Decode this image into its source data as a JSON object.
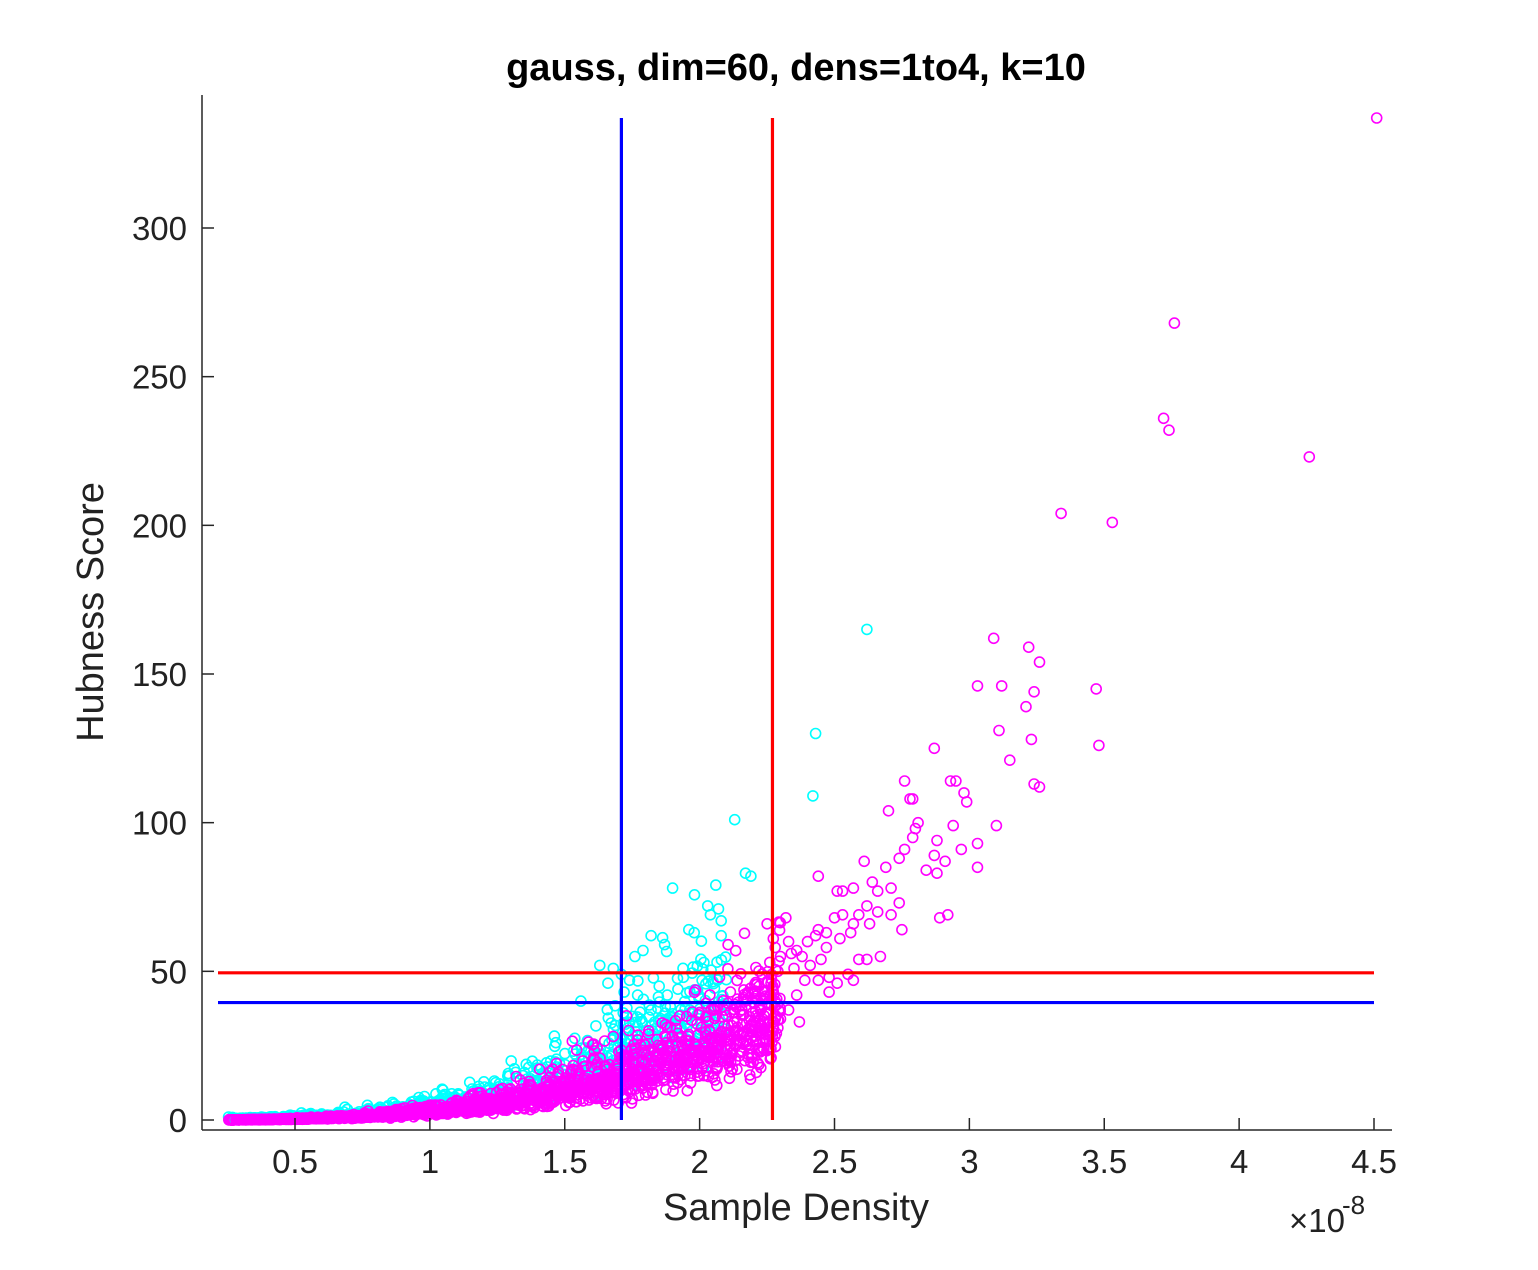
{
  "chart_data": {
    "type": "scatter",
    "title": "gauss, dim=60, dens=1to4, k=10",
    "xlabel": "Sample Density",
    "ylabel": "Hubness Score",
    "x_exponent_label": "×10",
    "x_exponent_power": "-8",
    "xlim": [
      0.2,
      4.5
    ],
    "ylim": [
      0,
      337
    ],
    "xticks": [
      0.5,
      1,
      1.5,
      2,
      2.5,
      3,
      3.5,
      4,
      4.5
    ],
    "yticks": [
      0,
      50,
      100,
      150,
      200,
      250,
      300
    ],
    "grid": false,
    "legend": "none",
    "colors": {
      "series_cyan": "#00ffff",
      "series_magenta": "#ff00ff",
      "ref_blue": "#0000ff",
      "ref_red": "#ff0000",
      "axis": "#262626"
    },
    "reference_lines": [
      {
        "orientation": "vertical",
        "x": 1.71,
        "y_range": [
          0,
          337
        ],
        "color": "#0000ff"
      },
      {
        "orientation": "vertical",
        "x": 2.27,
        "y_range": [
          0,
          337
        ],
        "color": "#ff0000"
      },
      {
        "orientation": "horizontal",
        "y": 39.5,
        "x_range": [
          0.25,
          4.5
        ],
        "color": "#0000ff"
      },
      {
        "orientation": "horizontal",
        "y": 49.5,
        "x_range": [
          0.25,
          4.5
        ],
        "color": "#ff0000"
      }
    ],
    "series": [
      {
        "color": "#00ffff",
        "trend": {
          "x_range": [
            0.25,
            2.1
          ],
          "base": 0.4,
          "coef": 43.0,
          "exponent": 3.0,
          "spread": 0.28,
          "count": 900
        },
        "points": [
          {
            "x": 2.62,
            "y": 165
          },
          {
            "x": 2.43,
            "y": 130
          },
          {
            "x": 2.42,
            "y": 109
          },
          {
            "x": 2.13,
            "y": 101
          },
          {
            "x": 2.17,
            "y": 83
          },
          {
            "x": 2.19,
            "y": 82
          },
          {
            "x": 1.9,
            "y": 78
          },
          {
            "x": 2.06,
            "y": 79
          },
          {
            "x": 2.03,
            "y": 72
          },
          {
            "x": 2.07,
            "y": 71
          },
          {
            "x": 2.04,
            "y": 69
          },
          {
            "x": 2.08,
            "y": 67
          },
          {
            "x": 1.96,
            "y": 64
          },
          {
            "x": 1.98,
            "y": 63
          },
          {
            "x": 2.08,
            "y": 62
          },
          {
            "x": 1.82,
            "y": 62
          },
          {
            "x": 1.87,
            "y": 59
          },
          {
            "x": 1.79,
            "y": 57
          },
          {
            "x": 1.76,
            "y": 55
          },
          {
            "x": 1.63,
            "y": 52
          },
          {
            "x": 1.68,
            "y": 51
          },
          {
            "x": 1.71,
            "y": 49
          },
          {
            "x": 1.74,
            "y": 47
          },
          {
            "x": 1.66,
            "y": 46
          },
          {
            "x": 1.85,
            "y": 45
          },
          {
            "x": 1.72,
            "y": 43
          },
          {
            "x": 1.77,
            "y": 42
          },
          {
            "x": 1.94,
            "y": 48
          },
          {
            "x": 1.88,
            "y": 42
          },
          {
            "x": 1.56,
            "y": 40
          }
        ]
      },
      {
        "color": "#ff00ff",
        "trend": {
          "x_range": [
            0.25,
            2.3
          ],
          "base": 0.0,
          "coef": 2.9,
          "exponent": 3.0,
          "spread": 0.3,
          "count": 1800
        },
        "points": [
          {
            "x": 4.51,
            "y": 337
          },
          {
            "x": 3.76,
            "y": 268
          },
          {
            "x": 3.72,
            "y": 236
          },
          {
            "x": 3.74,
            "y": 232
          },
          {
            "x": 4.26,
            "y": 223
          },
          {
            "x": 3.34,
            "y": 204
          },
          {
            "x": 3.53,
            "y": 201
          },
          {
            "x": 3.09,
            "y": 162
          },
          {
            "x": 3.22,
            "y": 159
          },
          {
            "x": 3.26,
            "y": 154
          },
          {
            "x": 3.03,
            "y": 146
          },
          {
            "x": 3.12,
            "y": 146
          },
          {
            "x": 3.47,
            "y": 145
          },
          {
            "x": 3.24,
            "y": 144
          },
          {
            "x": 3.21,
            "y": 139
          },
          {
            "x": 3.11,
            "y": 131
          },
          {
            "x": 3.23,
            "y": 128
          },
          {
            "x": 3.48,
            "y": 126
          },
          {
            "x": 2.87,
            "y": 125
          },
          {
            "x": 3.15,
            "y": 121
          },
          {
            "x": 2.93,
            "y": 114
          },
          {
            "x": 2.95,
            "y": 114
          },
          {
            "x": 2.76,
            "y": 114
          },
          {
            "x": 3.24,
            "y": 113
          },
          {
            "x": 3.26,
            "y": 112
          },
          {
            "x": 2.98,
            "y": 110
          },
          {
            "x": 2.99,
            "y": 107
          },
          {
            "x": 2.79,
            "y": 108
          },
          {
            "x": 2.78,
            "y": 108
          },
          {
            "x": 2.7,
            "y": 104
          },
          {
            "x": 2.81,
            "y": 100
          },
          {
            "x": 2.94,
            "y": 99
          },
          {
            "x": 3.1,
            "y": 99
          },
          {
            "x": 2.8,
            "y": 98
          },
          {
            "x": 2.79,
            "y": 95
          },
          {
            "x": 2.88,
            "y": 94
          },
          {
            "x": 3.03,
            "y": 93
          },
          {
            "x": 2.97,
            "y": 91
          },
          {
            "x": 2.76,
            "y": 91
          },
          {
            "x": 2.87,
            "y": 89
          },
          {
            "x": 2.74,
            "y": 88
          },
          {
            "x": 2.91,
            "y": 87
          },
          {
            "x": 2.61,
            "y": 87
          },
          {
            "x": 2.69,
            "y": 85
          },
          {
            "x": 3.03,
            "y": 85
          },
          {
            "x": 2.84,
            "y": 84
          },
          {
            "x": 2.88,
            "y": 83
          },
          {
            "x": 2.44,
            "y": 82
          },
          {
            "x": 2.64,
            "y": 80
          },
          {
            "x": 2.57,
            "y": 78
          },
          {
            "x": 2.71,
            "y": 78
          },
          {
            "x": 2.66,
            "y": 77
          },
          {
            "x": 2.51,
            "y": 77
          },
          {
            "x": 2.53,
            "y": 77
          },
          {
            "x": 2.74,
            "y": 73
          },
          {
            "x": 2.62,
            "y": 72
          },
          {
            "x": 2.66,
            "y": 70
          },
          {
            "x": 2.59,
            "y": 69
          },
          {
            "x": 2.71,
            "y": 69
          },
          {
            "x": 2.92,
            "y": 69
          },
          {
            "x": 2.89,
            "y": 68
          },
          {
            "x": 2.53,
            "y": 69
          },
          {
            "x": 2.5,
            "y": 68
          },
          {
            "x": 2.32,
            "y": 68
          },
          {
            "x": 2.25,
            "y": 66
          },
          {
            "x": 2.57,
            "y": 66
          },
          {
            "x": 2.63,
            "y": 66
          },
          {
            "x": 2.44,
            "y": 64
          },
          {
            "x": 2.75,
            "y": 64
          },
          {
            "x": 2.47,
            "y": 63
          },
          {
            "x": 2.56,
            "y": 63
          },
          {
            "x": 2.43,
            "y": 62
          },
          {
            "x": 2.4,
            "y": 60
          },
          {
            "x": 2.33,
            "y": 60
          },
          {
            "x": 2.52,
            "y": 61
          },
          {
            "x": 2.28,
            "y": 58
          },
          {
            "x": 2.47,
            "y": 58
          },
          {
            "x": 2.36,
            "y": 57
          },
          {
            "x": 2.34,
            "y": 56
          },
          {
            "x": 2.3,
            "y": 55
          },
          {
            "x": 2.38,
            "y": 55
          },
          {
            "x": 2.62,
            "y": 54
          },
          {
            "x": 2.67,
            "y": 55
          },
          {
            "x": 2.59,
            "y": 54
          },
          {
            "x": 2.45,
            "y": 54
          },
          {
            "x": 2.26,
            "y": 53
          },
          {
            "x": 2.41,
            "y": 52
          },
          {
            "x": 2.35,
            "y": 51
          },
          {
            "x": 2.29,
            "y": 50
          },
          {
            "x": 2.55,
            "y": 49
          },
          {
            "x": 2.48,
            "y": 48
          },
          {
            "x": 2.44,
            "y": 47
          },
          {
            "x": 2.39,
            "y": 47
          },
          {
            "x": 2.57,
            "y": 47
          },
          {
            "x": 2.51,
            "y": 46
          },
          {
            "x": 2.22,
            "y": 45
          },
          {
            "x": 2.27,
            "y": 44
          },
          {
            "x": 2.48,
            "y": 43
          },
          {
            "x": 2.36,
            "y": 42
          },
          {
            "x": 2.28,
            "y": 40
          },
          {
            "x": 2.33,
            "y": 37
          },
          {
            "x": 2.25,
            "y": 36
          },
          {
            "x": 2.3,
            "y": 34
          },
          {
            "x": 2.37,
            "y": 33
          },
          {
            "x": 2.29,
            "y": 31
          }
        ]
      }
    ]
  }
}
